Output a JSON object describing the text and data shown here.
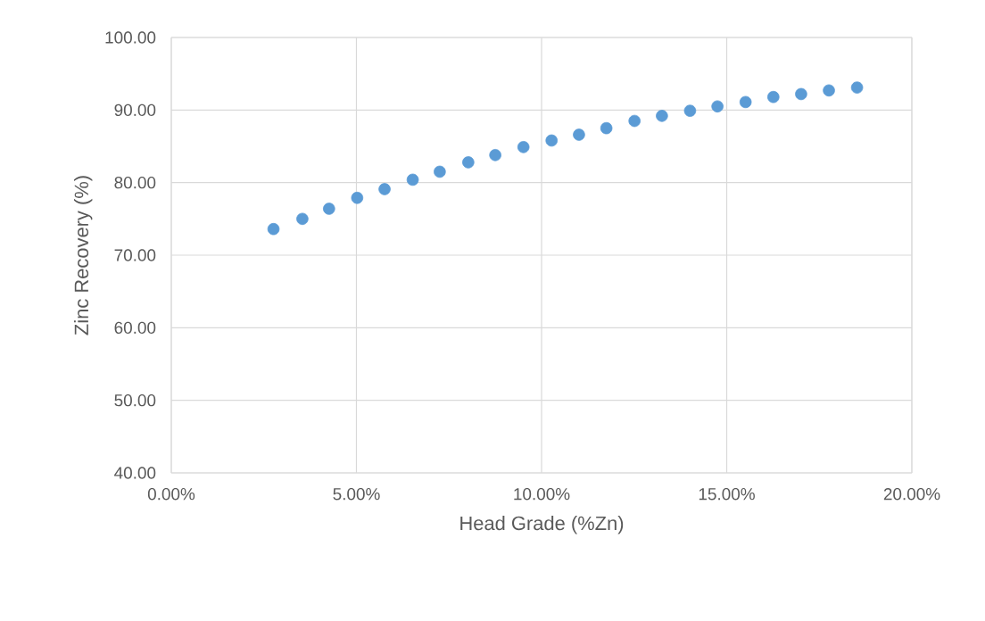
{
  "chart_data": {
    "type": "scatter",
    "xlabel": "Head Grade (%Zn)",
    "ylabel": "Zinc Recovery (%)",
    "x": [
      2.76,
      3.54,
      4.26,
      5.02,
      5.76,
      6.52,
      7.25,
      8.02,
      8.75,
      9.51,
      10.27,
      11.01,
      11.75,
      12.51,
      13.25,
      14.01,
      14.75,
      15.51,
      16.26,
      17.01,
      17.76,
      18.52
    ],
    "values": [
      73.6,
      75.0,
      76.4,
      77.9,
      79.1,
      80.4,
      81.5,
      82.8,
      83.8,
      84.9,
      85.8,
      86.6,
      87.5,
      88.5,
      89.2,
      89.9,
      90.5,
      91.1,
      91.8,
      92.2,
      92.7,
      93.1
    ],
    "color": "#5b9bd5",
    "marker": "circle",
    "grid": true,
    "xlim": [
      0,
      20
    ],
    "ylim": [
      40,
      100
    ],
    "xticks": [
      {
        "value": 0,
        "label": "0.00%"
      },
      {
        "value": 5,
        "label": "5.00%"
      },
      {
        "value": 10,
        "label": "10.00%"
      },
      {
        "value": 15,
        "label": "15.00%"
      },
      {
        "value": 20,
        "label": "20.00%"
      }
    ],
    "yticks": [
      {
        "value": 40,
        "label": "40.00"
      },
      {
        "value": 50,
        "label": "50.00"
      },
      {
        "value": 60,
        "label": "60.00"
      },
      {
        "value": 70,
        "label": "70.00"
      },
      {
        "value": 80,
        "label": "80.00"
      },
      {
        "value": 90,
        "label": "90.00"
      },
      {
        "value": 100,
        "label": "100.00"
      }
    ]
  }
}
